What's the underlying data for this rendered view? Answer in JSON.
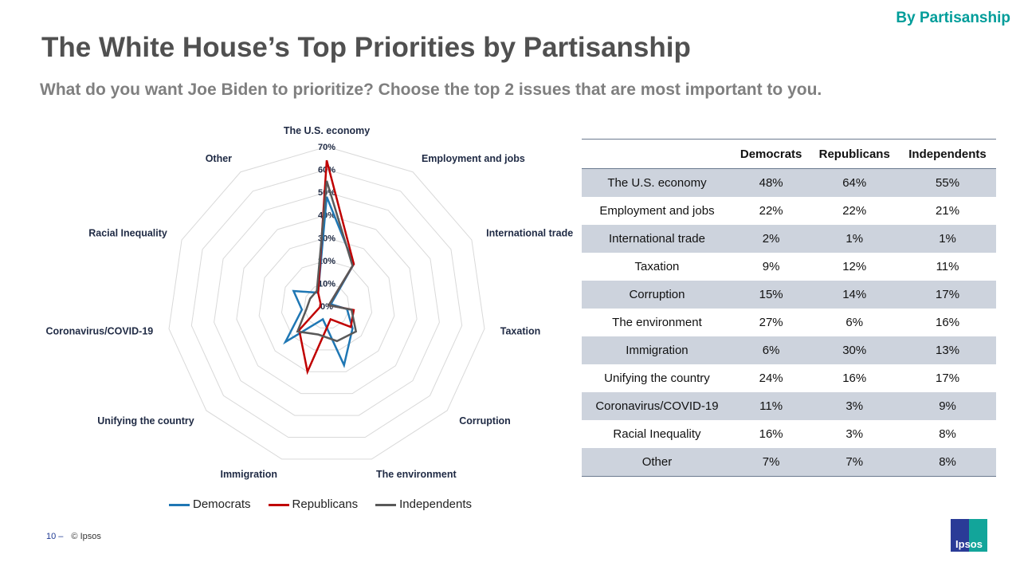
{
  "header": {
    "tag": "By Partisanship",
    "title": "The White House’s Top Priorities by Partisanship",
    "subtitle": "What do you want Joe Biden to prioritize? Choose the top 2 issues that are most important to you."
  },
  "chart_data": {
    "type": "radar",
    "categories": [
      "The U.S. economy",
      "Employment and jobs",
      "International trade",
      "Taxation",
      "Corruption",
      "The environment",
      "Immigration",
      "Unifying the country",
      "Coronavirus/COVID-19",
      "Racial Inequality",
      "Other"
    ],
    "rlim": [
      0,
      70
    ],
    "ticks": [
      "0%",
      "10%",
      "20%",
      "30%",
      "40%",
      "50%",
      "60%",
      "70%"
    ],
    "legend_position": "bottom",
    "series": [
      {
        "name": "Democrats",
        "color": "#1f77b4",
        "values": [
          48,
          22,
          2,
          9,
          15,
          27,
          6,
          24,
          11,
          16,
          7
        ]
      },
      {
        "name": "Republicans",
        "color": "#c00000",
        "values": [
          64,
          22,
          1,
          12,
          14,
          6,
          30,
          16,
          3,
          3,
          7
        ]
      },
      {
        "name": "Independents",
        "color": "#595959",
        "values": [
          55,
          21,
          1,
          11,
          17,
          16,
          13,
          17,
          9,
          8,
          8
        ]
      }
    ]
  },
  "table": {
    "headers": [
      "",
      "Democrats",
      "Republicans",
      "Independents"
    ],
    "rows": [
      [
        "The U.S. economy",
        "48%",
        "64%",
        "55%"
      ],
      [
        "Employment and jobs",
        "22%",
        "22%",
        "21%"
      ],
      [
        "International trade",
        "2%",
        "1%",
        "1%"
      ],
      [
        "Taxation",
        "9%",
        "12%",
        "11%"
      ],
      [
        "Corruption",
        "15%",
        "14%",
        "17%"
      ],
      [
        "The environment",
        "27%",
        "6%",
        "16%"
      ],
      [
        "Immigration",
        "6%",
        "30%",
        "13%"
      ],
      [
        "Unifying the country",
        "24%",
        "16%",
        "17%"
      ],
      [
        "Coronavirus/COVID-19",
        "11%",
        "3%",
        "9%"
      ],
      [
        "Racial Inequality",
        "16%",
        "3%",
        "8%"
      ],
      [
        "Other",
        "7%",
        "7%",
        "8%"
      ]
    ]
  },
  "footer": {
    "page": "10 –",
    "copyright": "© Ipsos",
    "logo": "Ipsos"
  }
}
